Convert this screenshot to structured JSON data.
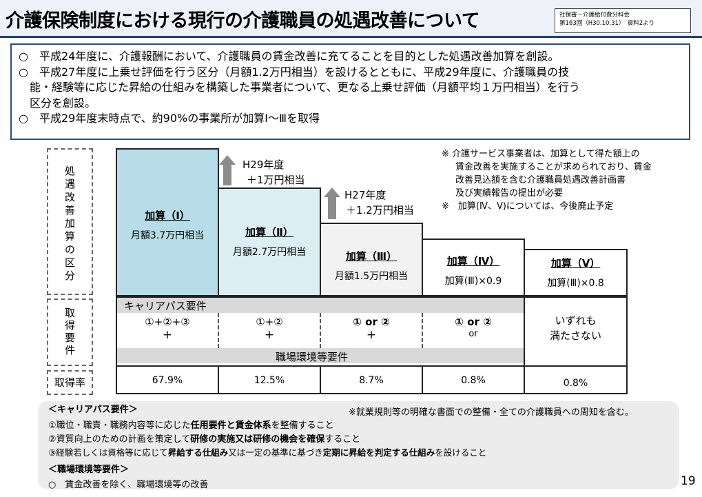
{
  "header": {
    "title": "介護保険制度における現行の介護職員の処遇改善について",
    "source_line1": "社保審－介護給付費分科会",
    "source_line2": "第163回（H30.10.31）　資料2より"
  },
  "summary": [
    "○　平成24年度に、介護報酬において、介護職員の賃金改善に充てることを目的とした処遇改善加算を創設。",
    "○　平成27年度に上乗せ評価を行う区分（月額1.2万円相当）を設けるとともに、平成29年度に、介護職員の技",
    "能・経験等に応じた昇給の仕組みを構築した事業者について、更なる上乗せ評価（月額平均１万円相当）を行う",
    "区分を創設。",
    "○　平成29年度末時点で、約90%の事業所が加算Ⅰ～Ⅲを取得"
  ],
  "row_labels": {
    "category": "処遇改善加算の区分",
    "requirement": "取得要件",
    "rate": "取得率"
  },
  "arrows": {
    "h29_year": "H29年度",
    "h29_amount": "＋1万円相当",
    "h27_year": "H27年度",
    "h27_amount": "＋1.2万円相当"
  },
  "notes": {
    "n1_l1": "※ 介護サービス事業者は、加算として得た額上の",
    "n1_l2": "賃金改善を実施することが求められており、賃金",
    "n1_l3": "改善見込額を含む介護職員処遇改善計画書",
    "n1_l4": "及び実績報告の提出が必要",
    "n2": "※　加算(Ⅳ、Ⅴ)については、今後廃止予定"
  },
  "tiers": [
    {
      "name": "加算（Ⅰ）",
      "desc": "月額3.7万円相当",
      "req": "①+②+③",
      "plus": "+",
      "rate": "67.9%"
    },
    {
      "name": "加算（Ⅱ）",
      "desc": "月額2.7万円相当",
      "req": "①+②",
      "plus": "+",
      "rate": "12.5%"
    },
    {
      "name": "加算（Ⅲ）",
      "desc": "月額1.5万円相当",
      "req": "① or ②",
      "plus": "+",
      "rate": "8.7%"
    },
    {
      "name": "加算（Ⅳ）",
      "desc": "加算(Ⅲ)×0.9",
      "req": "① or ②",
      "plus": "or",
      "rate": "0.8%"
    },
    {
      "name": "加算（Ⅴ）",
      "desc": "加算(Ⅲ)×0.8",
      "req_l1": "いずれも",
      "req_l2": "満たさない",
      "rate": "0.8%"
    }
  ],
  "bands": {
    "career": "キャリアパス要件",
    "workplace": "職場環境等要件"
  },
  "bottom": {
    "career_head": "＜キャリアパス要件＞",
    "footnote": "※就業規則等の明確な書面での整備・全ての介護職員への周知を含む。",
    "i1_a": "①職位・職責・職務内容等に応じた",
    "i1_b": "任用要件と賃金体系",
    "i1_c": "を整備すること",
    "i2_a": "②資質向上のための計画を策定して",
    "i2_b": "研修の実施又は研修の機会を確保",
    "i2_c": "すること",
    "i3_a": "③経験若しくは資格等に応じて",
    "i3_b": "昇給する仕組み",
    "i3_c": "又は一定の基準に基づき",
    "i3_d": "定期に昇給を判定する仕組み",
    "i3_e": "を設けること",
    "env_head": "＜職場環境等要件＞",
    "env_item": "○　賃金改善を除く、職場環境等の改善"
  },
  "page_number": "19",
  "colors": {
    "tier1_fill": "#b7dde8",
    "tier2_fill": "#dbeef4",
    "band_gray": "#d9d9d9",
    "frame_blue": "#2b4c7e"
  }
}
